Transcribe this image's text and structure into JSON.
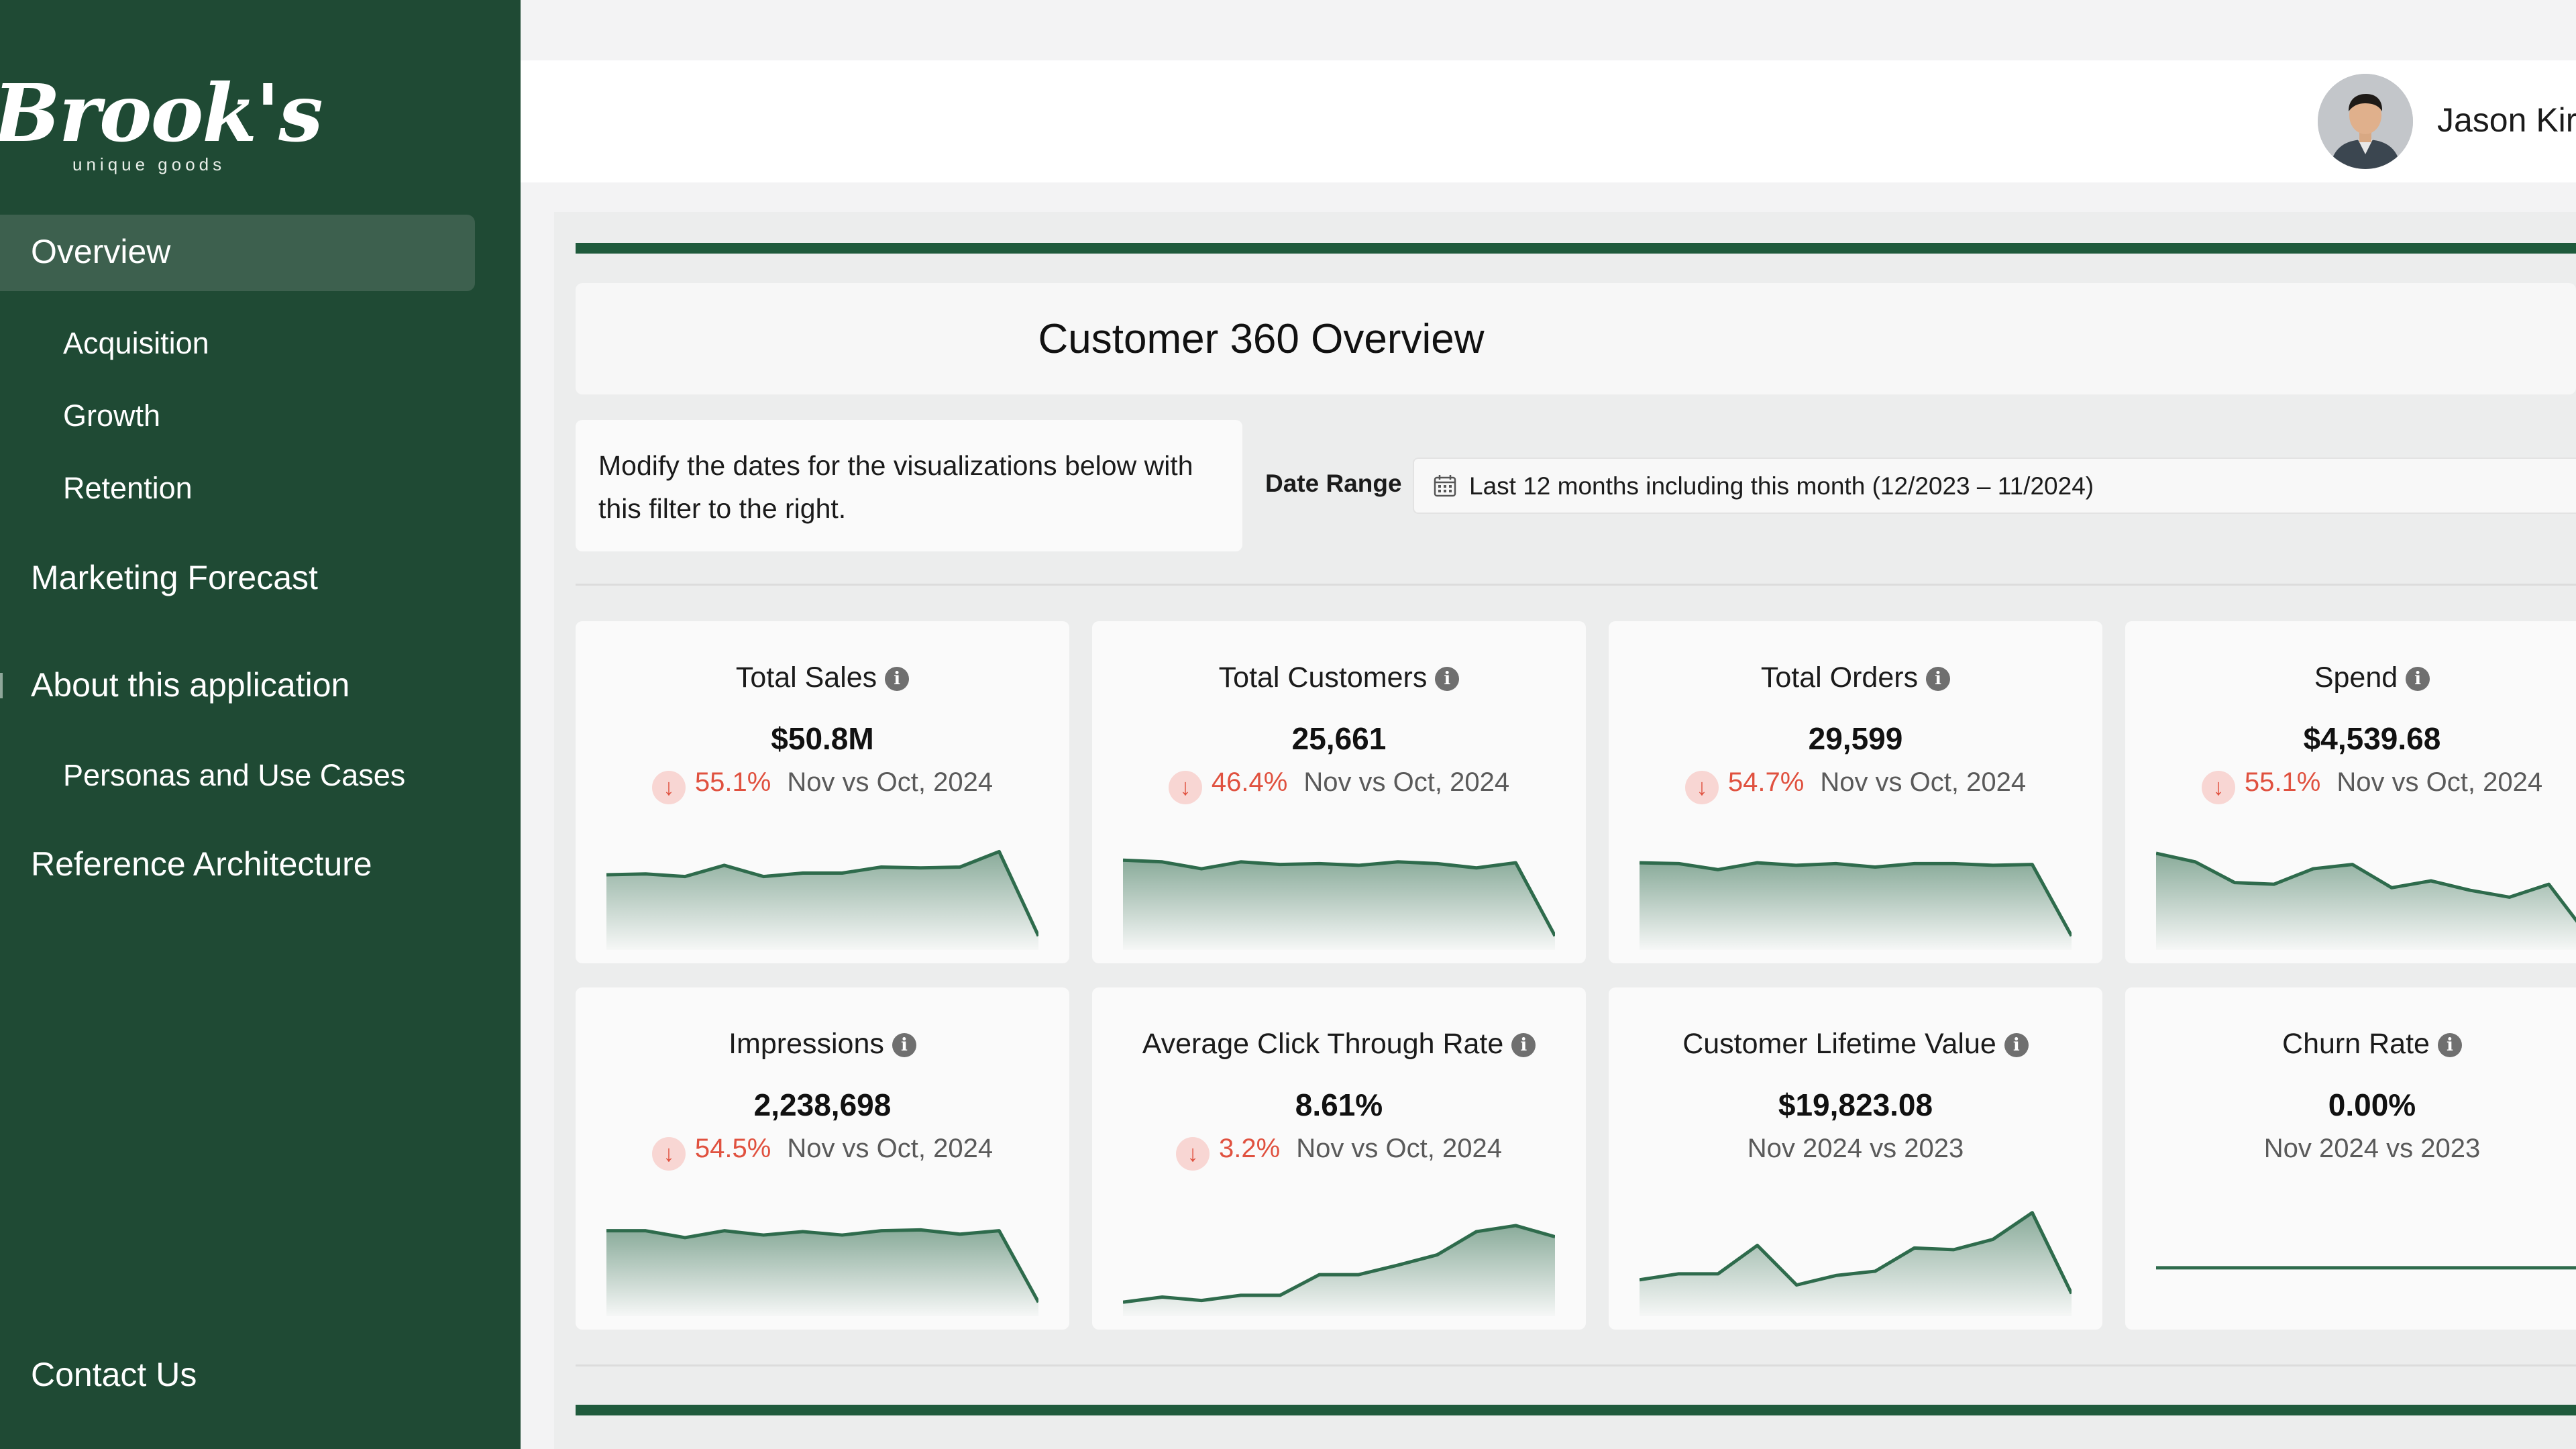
{
  "brand": {
    "name": "Brook's",
    "tagline": "unique goods"
  },
  "sidebar": {
    "active": "Overview",
    "items": [
      {
        "label": "Overview"
      },
      {
        "label": "Acquisition"
      },
      {
        "label": "Growth"
      },
      {
        "label": "Retention"
      },
      {
        "label": "Marketing Forecast"
      },
      {
        "label": "About this application"
      },
      {
        "label": "Personas and Use Cases"
      },
      {
        "label": "Reference Architecture"
      },
      {
        "label": "Contact Us"
      }
    ]
  },
  "header": {
    "user_name": "Jason Kir"
  },
  "page": {
    "title": "Customer 360 Overview",
    "hint": "Modify the dates for the visualizations below with this filter to the right.",
    "date_range_label": "Date Range",
    "date_range_value": "Last 12 months including this month (12/2023 – 11/2024)"
  },
  "colors": {
    "accent": "#1f5a3c",
    "sidebar": "#1f4a34",
    "negative": "#e0513f",
    "line": "#2e6b4c"
  },
  "kpis": [
    {
      "title": "Total Sales",
      "value": "$50.8M",
      "delta_pct": "55.1%",
      "comparison": "Nov vs Oct, 2024",
      "direction": "down",
      "trend": [
        8.1,
        8.2,
        7.9,
        9.2,
        7.9,
        8.3,
        8.3,
        9.0,
        8.9,
        9.0,
        10.8,
        1.0
      ]
    },
    {
      "title": "Total Customers",
      "value": "25,661",
      "delta_pct": "46.4%",
      "comparison": "Nov vs Oct, 2024",
      "direction": "down",
      "trend": [
        9.8,
        9.6,
        8.8,
        9.6,
        9.3,
        9.4,
        9.2,
        9.6,
        9.4,
        8.9,
        9.5,
        1.0
      ]
    },
    {
      "title": "Total Orders",
      "value": "29,599",
      "delta_pct": "54.7%",
      "comparison": "Nov vs Oct, 2024",
      "direction": "down",
      "trend": [
        9.5,
        9.4,
        8.7,
        9.5,
        9.2,
        9.4,
        9.0,
        9.4,
        9.4,
        9.2,
        9.3,
        1.0
      ]
    },
    {
      "title": "Spend",
      "value": "$4,539.68",
      "delta_pct": "55.1%",
      "comparison": "Nov vs Oct, 2024",
      "direction": "down",
      "trend": [
        10.6,
        9.6,
        7.2,
        7.0,
        8.8,
        9.3,
        6.6,
        7.4,
        6.3,
        5.5,
        7.0,
        1.0
      ]
    },
    {
      "title": "Impressions",
      "value": "2,238,698",
      "delta_pct": "54.5%",
      "comparison": "Nov vs Oct, 2024",
      "direction": "down",
      "trend": [
        9.3,
        9.3,
        8.5,
        9.3,
        8.8,
        9.2,
        8.8,
        9.3,
        9.4,
        8.9,
        9.3,
        1.0
      ]
    },
    {
      "title": "Average Click Through Rate",
      "value": "8.61%",
      "delta_pct": "3.2%",
      "comparison": "Nov vs Oct, 2024",
      "direction": "down",
      "trend": [
        1.0,
        1.6,
        1.2,
        1.8,
        1.8,
        4.2,
        4.2,
        5.3,
        6.5,
        9.2,
        9.9,
        8.6
      ]
    },
    {
      "title": "Customer Lifetime Value",
      "value": "$19,823.08",
      "delta_pct": "",
      "comparison": "Nov 2024 vs 2023",
      "direction": "none",
      "trend": [
        3.6,
        4.3,
        4.3,
        7.6,
        3.0,
        4.1,
        4.6,
        7.3,
        7.1,
        8.3,
        11.4,
        2.0
      ]
    },
    {
      "title": "Churn Rate",
      "value": "0.00%",
      "delta_pct": "",
      "comparison": "Nov 2024 vs 2023",
      "direction": "none",
      "trend": [
        5.0,
        5.0,
        5.0,
        5.0,
        5.0,
        5.0,
        5.0,
        5.0,
        5.0,
        5.0,
        5.0,
        5.0
      ]
    }
  ]
}
